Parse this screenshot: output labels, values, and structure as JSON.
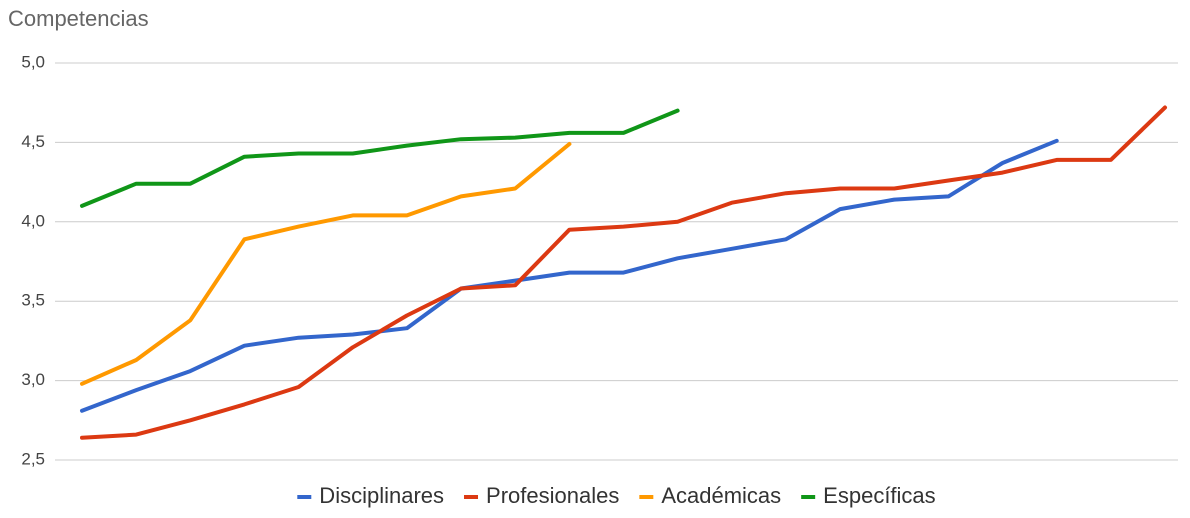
{
  "chart_data": {
    "type": "line",
    "title": "Competencias",
    "categories": [
      null,
      null,
      null,
      null,
      null,
      null,
      null,
      null,
      null,
      null,
      null,
      null,
      null,
      null,
      null,
      null,
      null,
      null,
      null,
      null,
      null
    ],
    "series": [
      {
        "name": "Disciplinares",
        "color": "#3366cc",
        "values": [
          2.81,
          2.94,
          3.06,
          3.22,
          3.27,
          3.29,
          3.33,
          3.58,
          3.63,
          3.68,
          3.68,
          3.77,
          3.83,
          3.89,
          4.08,
          4.14,
          4.16,
          4.37,
          4.51,
          null,
          null
        ]
      },
      {
        "name": "Profesionales",
        "color": "#dc3912",
        "values": [
          2.64,
          2.66,
          2.75,
          2.85,
          2.96,
          3.21,
          3.41,
          3.58,
          3.6,
          3.95,
          3.97,
          4.0,
          4.12,
          4.18,
          4.21,
          4.21,
          4.26,
          4.31,
          4.39,
          4.39,
          4.72
        ]
      },
      {
        "name": "Académicas",
        "color": "#ff9900",
        "values": [
          2.98,
          3.13,
          3.38,
          3.89,
          3.97,
          4.04,
          4.04,
          4.16,
          4.21,
          4.49,
          null,
          null,
          null,
          null,
          null,
          null,
          null,
          null,
          null,
          null,
          null
        ]
      },
      {
        "name": "Específicas",
        "color": "#109618",
        "values": [
          4.1,
          4.24,
          4.24,
          4.41,
          4.43,
          4.43,
          4.48,
          4.52,
          4.53,
          4.56,
          4.56,
          4.7,
          null,
          null,
          null,
          null,
          null,
          null,
          null,
          null,
          null
        ]
      }
    ],
    "ylim": [
      2.5,
      5.0
    ],
    "yticks": [
      {
        "value": 2.5,
        "label": "2,5"
      },
      {
        "value": 3.0,
        "label": "3,0"
      },
      {
        "value": 3.5,
        "label": "3,5"
      },
      {
        "value": 4.0,
        "label": "4,0"
      },
      {
        "value": 4.5,
        "label": "4,5"
      },
      {
        "value": 5.0,
        "label": "5,0"
      }
    ],
    "grid": true,
    "legend": "bottom"
  }
}
